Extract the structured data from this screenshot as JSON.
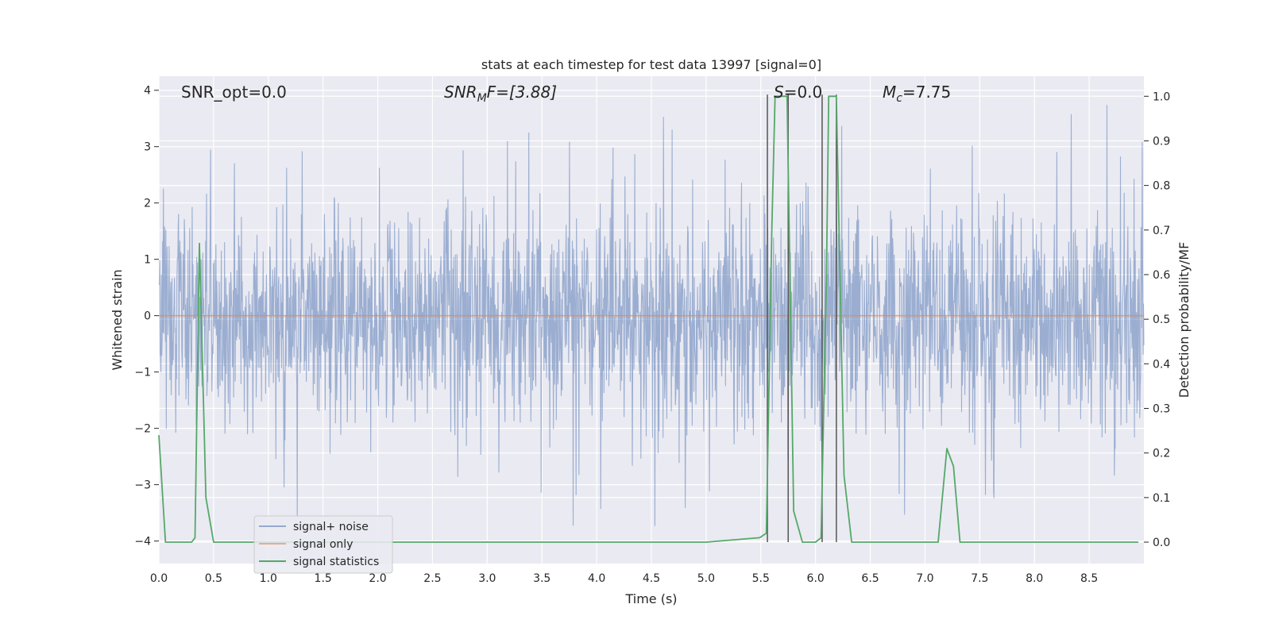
{
  "chart_data": {
    "type": "line",
    "title": "stats at each timestep for test data 13997 [signal=0]",
    "xlabel": "Time (s)",
    "ylabel": "Whitened strain",
    "y2label": "Detection probability/MF",
    "xlim": [
      0.0,
      9.0
    ],
    "ylim": [
      -4.4,
      4.25
    ],
    "y2lim": [
      -0.048,
      1.045
    ],
    "xticks": [
      0.0,
      0.5,
      1.0,
      1.5,
      2.0,
      2.5,
      3.0,
      3.5,
      4.0,
      4.5,
      5.0,
      5.5,
      6.0,
      6.5,
      7.0,
      7.5,
      8.0,
      8.5
    ],
    "xtick_labels": [
      "0.0",
      "0.5",
      "1.0",
      "1.5",
      "2.0",
      "2.5",
      "3.0",
      "3.5",
      "4.0",
      "4.5",
      "5.0",
      "5.5",
      "6.0",
      "6.5",
      "7.0",
      "7.5",
      "8.0",
      "8.5"
    ],
    "yticks": [
      -4,
      -3,
      -2,
      -1,
      0,
      1,
      2,
      3,
      4
    ],
    "ytick_labels": [
      "−4",
      "−3",
      "−2",
      "−1",
      "0",
      "1",
      "2",
      "3",
      "4"
    ],
    "y2ticks": [
      0.0,
      0.1,
      0.2,
      0.3,
      0.4,
      0.5,
      0.6,
      0.7,
      0.8,
      0.9,
      1.0
    ],
    "y2tick_labels": [
      "0.0",
      "0.1",
      "0.2",
      "0.3",
      "0.4",
      "0.5",
      "0.6",
      "0.7",
      "0.8",
      "0.9",
      "1.0"
    ],
    "grid": true,
    "legend_position": "lower-left",
    "series": [
      {
        "name": "signal+ noise",
        "axis": "left",
        "color": "#4c72b0",
        "opacity": 0.5,
        "description_values": "whitened noise, mostly within [-2.3, 2.3] with spikes up to ~3.9 and down to ~-4.0",
        "envelope_max": 3.9,
        "envelope_min": -4.0,
        "seed": 13997
      },
      {
        "name": "signal only",
        "axis": "left",
        "color": "#dd8452",
        "x": [
          0.0,
          9.0
        ],
        "y": [
          0.0,
          0.0
        ]
      },
      {
        "name": "signal statistics",
        "axis": "right",
        "color": "#55a868",
        "x": [
          0.0,
          0.06,
          0.12,
          0.2,
          0.3,
          0.33,
          0.37,
          0.43,
          0.5,
          0.6,
          1.0,
          2.0,
          2.5,
          2.9,
          3.0,
          3.5,
          4.0,
          5.0,
          5.49,
          5.55,
          5.6,
          5.63,
          5.68,
          5.74,
          5.8,
          5.88,
          6.0,
          6.05,
          6.1,
          6.12,
          6.19,
          6.26,
          6.33,
          6.5,
          7.0,
          7.12,
          7.2,
          7.26,
          7.32,
          7.4,
          8.0,
          8.5,
          8.95
        ],
        "y": [
          0.24,
          0.0,
          0.0,
          0.0,
          0.0,
          0.01,
          0.67,
          0.1,
          0.0,
          0.0,
          0.0,
          0.0,
          0.0,
          0.0,
          0.0,
          0.0,
          0.0,
          0.0,
          0.01,
          0.02,
          0.7,
          1.0,
          1.0,
          1.0,
          0.07,
          0.0,
          0.0,
          0.01,
          0.6,
          1.0,
          1.0,
          0.15,
          0.0,
          0.0,
          0.0,
          0.0,
          0.21,
          0.17,
          0.0,
          0.0,
          0.0,
          0.0,
          0.0
        ]
      }
    ],
    "vlines": [
      {
        "x": 5.56,
        "color": "#555555"
      },
      {
        "x": 5.75,
        "color": "#555555"
      },
      {
        "x": 6.06,
        "color": "#555555"
      },
      {
        "x": 6.19,
        "color": "#555555"
      }
    ],
    "annotations": [
      {
        "key": "snr_opt",
        "text": "SNR_opt=0.0"
      },
      {
        "key": "snr_mf",
        "base": "SNR",
        "sub": "M",
        "rest": "F=[3.88]"
      },
      {
        "key": "s",
        "italic": "S",
        "rest": "=0.0"
      },
      {
        "key": "mc",
        "base": "M",
        "sub": "c",
        "rest": "=7.75"
      }
    ]
  }
}
